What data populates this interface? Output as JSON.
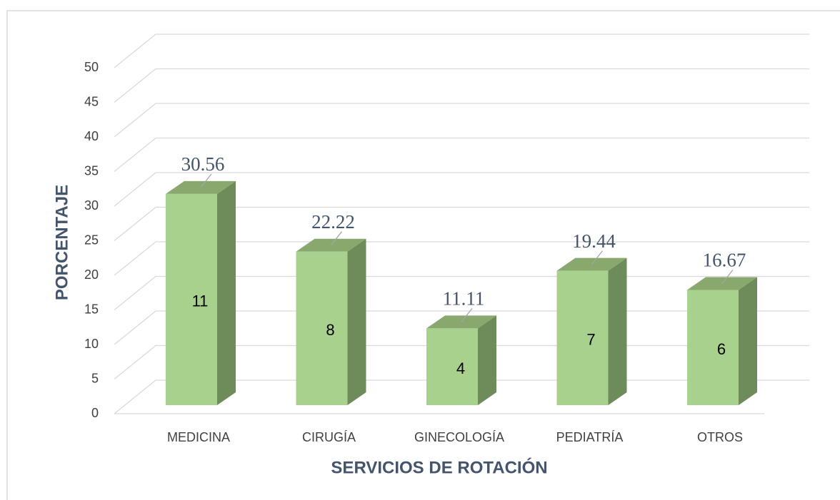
{
  "chart_data": {
    "type": "bar3d",
    "y_label": "PORCENTAJE",
    "x_label": "SERVICIOS DE ROTACIÓN",
    "categories": [
      "MEDICINA",
      "CIRUGÍA",
      "GINECOLOGÍA",
      "PEDIATRÍA",
      "OTROS"
    ],
    "values": [
      30.56,
      22.22,
      11.11,
      19.44,
      16.67
    ],
    "counts": [
      11,
      8,
      4,
      7,
      6
    ],
    "color": "#a9d18e",
    "ylim": [
      0,
      50
    ],
    "yticks": [
      0,
      5,
      10,
      15,
      20,
      25,
      30,
      35,
      40,
      45,
      50
    ],
    "grid": true
  }
}
